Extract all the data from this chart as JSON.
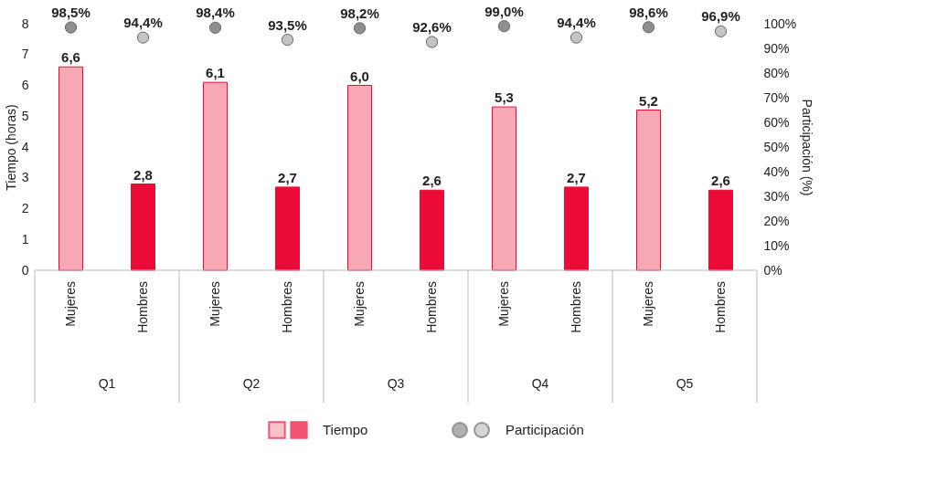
{
  "chart_data": {
    "type": "bar",
    "categories": [
      "Mujeres",
      "Hombres",
      "Mujeres",
      "Hombres",
      "Mujeres",
      "Hombres",
      "Mujeres",
      "Hombres",
      "Mujeres",
      "Hombres"
    ],
    "annotations": [
      "Q1",
      "Q2",
      "Q3",
      "Q4",
      "Q5"
    ],
    "ylabel": "Tiempo (horas)",
    "y2label": "Participación (%)",
    "ylim": [
      0,
      8
    ],
    "yticks": [
      0,
      1,
      2,
      3,
      4,
      5,
      6,
      7,
      8
    ],
    "y2lim": [
      0,
      100
    ],
    "y2ticks": [
      {
        "value": 0,
        "label": "0%"
      },
      {
        "value": 10,
        "label": "10%"
      },
      {
        "value": 20,
        "label": "20%"
      },
      {
        "value": 30,
        "label": "30%"
      },
      {
        "value": 40,
        "label": "40%"
      },
      {
        "value": 50,
        "label": "50%"
      },
      {
        "value": 60,
        "label": "60%"
      },
      {
        "value": 70,
        "label": "70%"
      },
      {
        "value": 80,
        "label": "80%"
      },
      {
        "value": 90,
        "label": "90%"
      },
      {
        "value": 100,
        "label": "100%"
      }
    ],
    "legend": "bottom",
    "grid": false,
    "series": [
      {
        "name": "Tiempo",
        "type": "bar",
        "colors": [
          "#f7a8b4",
          "#ec0b37",
          "#f7a8b4",
          "#ec0b37",
          "#f7a8b4",
          "#ec0b37",
          "#f7a8b4",
          "#ec0b37",
          "#f7a8b4",
          "#ec0b37"
        ],
        "values": [
          6.6,
          2.8,
          6.1,
          2.7,
          6.0,
          2.6,
          5.3,
          2.7,
          5.2,
          2.6
        ],
        "value_labels": [
          "6,6",
          "2,8",
          "6,1",
          "2,7",
          "6,0",
          "2,6",
          "5,3",
          "2,7",
          "5,2",
          "2,6"
        ]
      },
      {
        "name": "Participación",
        "type": "scatter",
        "axis": "y2",
        "marker": "circle",
        "colors": [
          "#8f8f8f",
          "#c4c4c4",
          "#8f8f8f",
          "#c4c4c4",
          "#8f8f8f",
          "#c4c4c4",
          "#8f8f8f",
          "#c4c4c4",
          "#8f8f8f",
          "#c4c4c4"
        ],
        "values": [
          98.5,
          94.4,
          98.4,
          93.5,
          98.2,
          92.6,
          99.0,
          94.4,
          98.6,
          96.9
        ],
        "value_labels": [
          "98,5%",
          "94,4%",
          "98,4%",
          "93,5%",
          "98,2%",
          "92,6%",
          "99,0%",
          "94,4%",
          "98,6%",
          "96,9%"
        ]
      }
    ]
  }
}
